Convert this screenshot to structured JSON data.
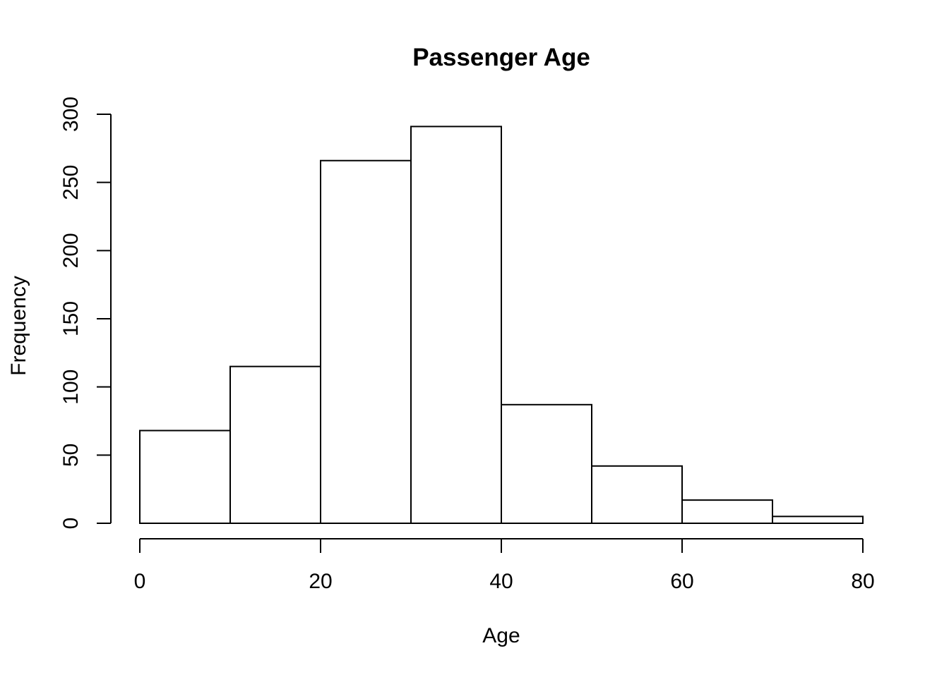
{
  "chart_data": {
    "type": "bar",
    "title": "Passenger Age",
    "xlabel": "Age",
    "ylabel": "Frequency",
    "bins": [
      {
        "from": 0,
        "to": 10,
        "value": 68
      },
      {
        "from": 10,
        "to": 20,
        "value": 115
      },
      {
        "from": 20,
        "to": 30,
        "value": 266
      },
      {
        "from": 30,
        "to": 40,
        "value": 291
      },
      {
        "from": 40,
        "to": 50,
        "value": 87
      },
      {
        "from": 50,
        "to": 60,
        "value": 42
      },
      {
        "from": 60,
        "to": 70,
        "value": 17
      },
      {
        "from": 70,
        "to": 80,
        "value": 5
      }
    ],
    "xlim": [
      0,
      80
    ],
    "ylim": [
      0,
      300
    ],
    "x_ticks": [
      "0",
      "20",
      "40",
      "60",
      "80"
    ],
    "y_ticks": [
      "0",
      "50",
      "100",
      "150",
      "200",
      "250",
      "300"
    ],
    "grid": false,
    "legend": "none",
    "bar_fill": "#ffffff",
    "bar_stroke": "#000000"
  }
}
